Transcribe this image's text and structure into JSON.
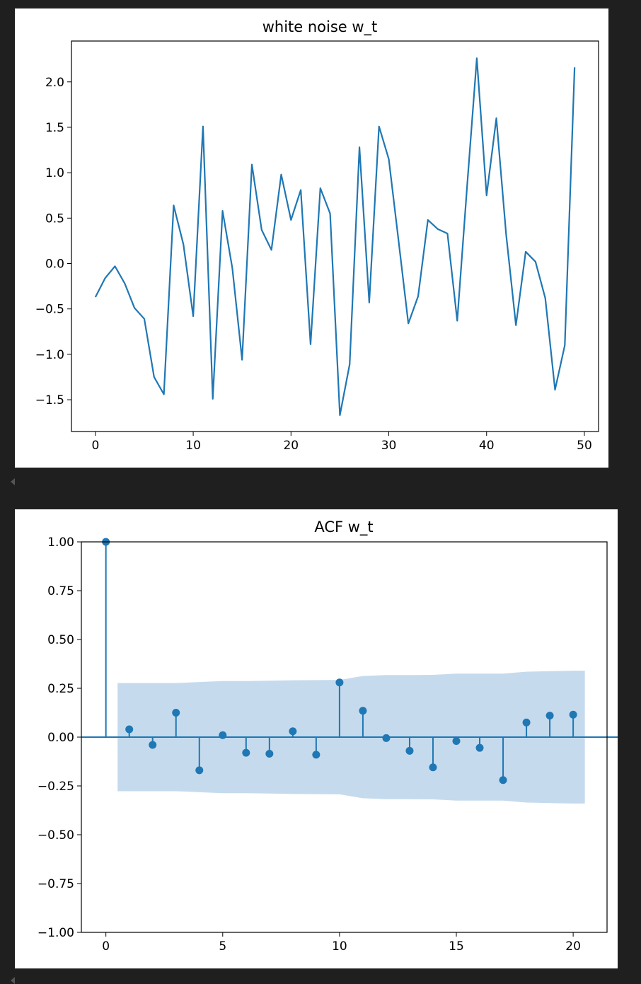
{
  "colors": {
    "series": "#1f77b4",
    "confidence_band": "#c5dbed",
    "background": "#1f1f1f",
    "panel": "#ffffff"
  },
  "chart_data": [
    {
      "type": "line",
      "title": "white noise w_t",
      "xlabel": "",
      "ylabel": "",
      "xlim": [
        -2.45,
        51.45
      ],
      "ylim": [
        -1.85,
        2.45
      ],
      "xticks": [
        0,
        10,
        20,
        30,
        40,
        50
      ],
      "xtick_labels": [
        "0",
        "10",
        "20",
        "30",
        "40",
        "50"
      ],
      "yticks": [
        -1.5,
        -1.0,
        -0.5,
        0.0,
        0.5,
        1.0,
        1.5,
        2.0
      ],
      "ytick_labels": [
        "−1.5",
        "−1.0",
        "−0.5",
        "0.0",
        "0.5",
        "1.0",
        "1.5",
        "2.0"
      ],
      "grid": false,
      "series": [
        {
          "x": [
            0,
            1,
            2,
            3,
            4,
            5,
            6,
            7,
            8,
            9,
            10,
            11,
            12,
            13,
            14,
            15,
            16,
            17,
            18,
            19,
            20,
            21,
            22,
            23,
            24,
            25,
            26,
            27,
            28,
            29,
            30,
            31,
            32,
            33,
            34,
            35,
            36,
            37,
            38,
            39,
            40,
            41,
            42,
            43,
            44,
            45,
            46,
            47,
            48,
            49
          ],
          "values": [
            -0.37,
            -0.16,
            -0.03,
            -0.22,
            -0.49,
            -0.61,
            -1.25,
            -1.44,
            0.64,
            0.21,
            -0.58,
            1.51,
            -1.49,
            0.58,
            -0.05,
            -1.06,
            1.09,
            0.37,
            0.15,
            0.98,
            0.48,
            0.81,
            -0.89,
            0.83,
            0.55,
            -1.67,
            -1.11,
            1.28,
            -0.43,
            1.51,
            1.15,
            0.25,
            -0.66,
            -0.36,
            0.48,
            0.38,
            0.33,
            -0.63,
            0.84,
            2.26,
            0.75,
            1.6,
            0.32,
            -0.68,
            0.13,
            0.02,
            -0.38,
            -1.39,
            -0.9,
            2.16
          ]
        }
      ]
    },
    {
      "type": "stem",
      "title": "ACF w_t",
      "xlabel": "",
      "ylabel": "",
      "xlim": [
        -1.05,
        21.45
      ],
      "ylim": [
        -1.0,
        1.0
      ],
      "xticks": [
        0,
        5,
        10,
        15,
        20
      ],
      "xtick_labels": [
        "0",
        "5",
        "10",
        "15",
        "20"
      ],
      "yticks": [
        -1.0,
        -0.75,
        -0.5,
        -0.25,
        0.0,
        0.25,
        0.5,
        0.75,
        1.0
      ],
      "ytick_labels": [
        "−1.00",
        "−0.75",
        "−0.50",
        "−0.25",
        "0.00",
        "0.25",
        "0.50",
        "0.75",
        "1.00"
      ],
      "grid": false,
      "lags": [
        0,
        1,
        2,
        3,
        4,
        5,
        6,
        7,
        8,
        9,
        10,
        11,
        12,
        13,
        14,
        15,
        16,
        17,
        18,
        19,
        20
      ],
      "values": [
        1.0,
        0.04,
        -0.04,
        0.125,
        -0.17,
        0.01,
        -0.08,
        -0.085,
        0.03,
        -0.09,
        0.28,
        0.135,
        -0.005,
        -0.07,
        -0.155,
        -0.02,
        -0.055,
        -0.22,
        0.075,
        0.11,
        0.115
      ],
      "confidence_band": {
        "lags": [
          0.5,
          1,
          2,
          3,
          4,
          5,
          6,
          7,
          8,
          9,
          10,
          11,
          12,
          13,
          14,
          15,
          16,
          17,
          18,
          19,
          20,
          20.5
        ],
        "upper": [
          0.277,
          0.277,
          0.277,
          0.277,
          0.282,
          0.287,
          0.287,
          0.289,
          0.291,
          0.292,
          0.293,
          0.313,
          0.318,
          0.318,
          0.319,
          0.325,
          0.325,
          0.325,
          0.335,
          0.338,
          0.34,
          0.34
        ]
      }
    }
  ]
}
